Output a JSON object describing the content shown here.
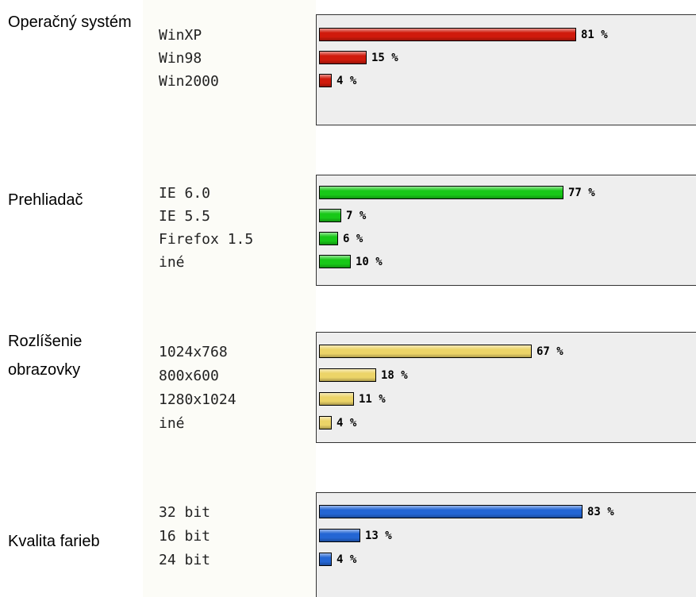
{
  "chart_data": [
    {
      "type": "bar",
      "title": "Operačný systém",
      "categories": [
        "WinXP",
        "Win98",
        "Win2000"
      ],
      "values": [
        81,
        15,
        4
      ],
      "value_labels": [
        "81 %",
        "15 %",
        "4 %"
      ],
      "color": "#d01a0c"
    },
    {
      "type": "bar",
      "title": "Prehliadač",
      "categories": [
        "IE 6.0",
        "IE 5.5",
        "Firefox 1.5",
        "iné"
      ],
      "values": [
        77,
        7,
        6,
        10
      ],
      "value_labels": [
        "77 %",
        "7 %",
        "6 %",
        "10 %"
      ],
      "color": "#18c818"
    },
    {
      "type": "bar",
      "title": "Rozlíšenie obrazovky",
      "categories": [
        "1024x768",
        "800x600",
        "1280x1024",
        "iné"
      ],
      "values": [
        67,
        18,
        11,
        4
      ],
      "value_labels": [
        "67 %",
        "18 %",
        "11 %",
        "4 %"
      ],
      "color": "#ecd468"
    },
    {
      "type": "bar",
      "title": "Kvalita farieb",
      "categories": [
        "32 bit",
        "16 bit",
        "24 bit"
      ],
      "values": [
        83,
        13,
        4
      ],
      "value_labels": [
        "83 %",
        "13 %",
        "4 %"
      ],
      "color": "#2466d4"
    }
  ]
}
